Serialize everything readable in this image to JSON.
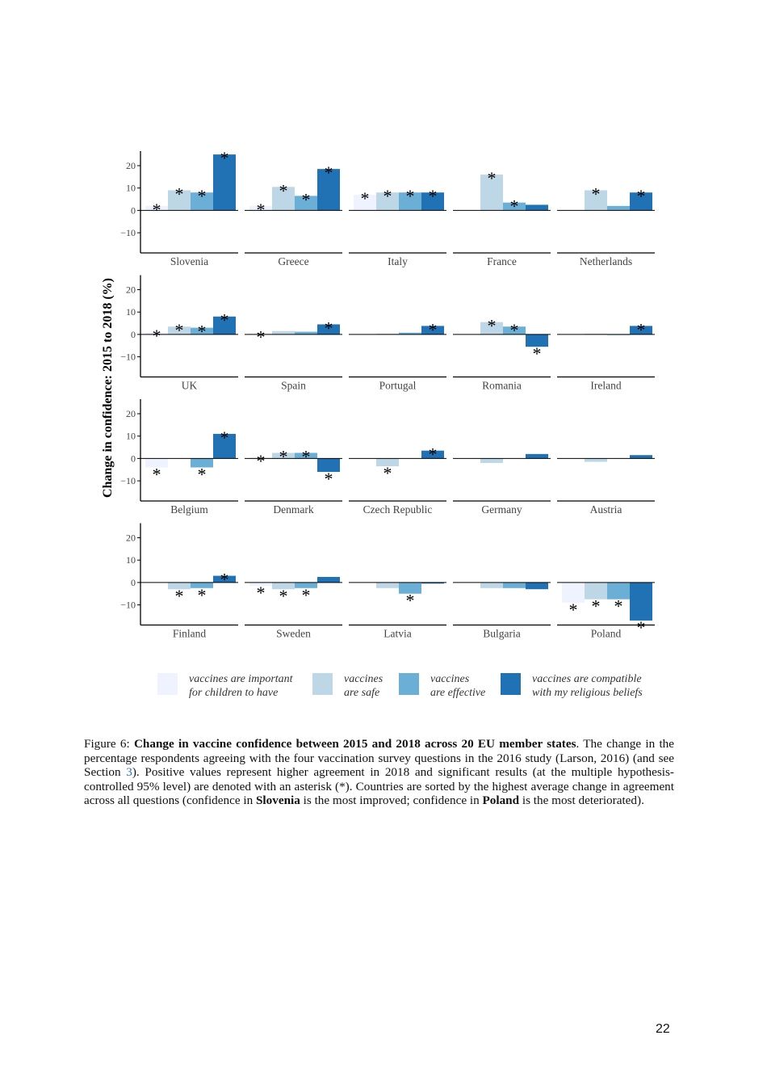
{
  "chart_data": {
    "type": "bar",
    "ylabel": "Change in confidence: 2015 to 2018 (%)",
    "ylim": [
      -19,
      26.5
    ],
    "yticks": [
      {
        "value": -10,
        "label": "−10"
      },
      0,
      10,
      20
    ],
    "marker": "*",
    "categories": [
      "Slovenia",
      "Greece",
      "Italy",
      "France",
      "Netherlands",
      "UK",
      "Spain",
      "Portugal",
      "Romania",
      "Ireland",
      "Belgium",
      "Denmark",
      "Czech Republic",
      "Germany",
      "Austria",
      "Finland",
      "Sweden",
      "Latvia",
      "Bulgaria",
      "Poland"
    ],
    "series": [
      {
        "name": [
          "vaccines are important",
          "for children to have"
        ],
        "color": "#eff3ff",
        "values": [
          2,
          2,
          7,
          0,
          0,
          1,
          0.5,
          0,
          0,
          0,
          -4,
          0.5,
          0,
          0,
          0,
          0,
          -1.5,
          0,
          0,
          -9
        ],
        "significant": [
          true,
          true,
          true,
          false,
          false,
          true,
          true,
          false,
          false,
          false,
          true,
          true,
          false,
          false,
          false,
          false,
          true,
          false,
          false,
          true
        ]
      },
      {
        "name": [
          "vaccines",
          "are safe"
        ],
        "color": "#bdd7e7",
        "values": [
          9,
          10.5,
          8,
          16,
          9,
          3.5,
          1.5,
          0.3,
          5.5,
          0.3,
          0,
          2.5,
          -3.5,
          -2,
          -1.5,
          -3,
          -3,
          -2.5,
          -2.5,
          -7.5
        ],
        "significant": [
          true,
          true,
          true,
          true,
          true,
          true,
          false,
          false,
          true,
          false,
          false,
          true,
          true,
          false,
          false,
          true,
          true,
          false,
          false,
          true
        ]
      },
      {
        "name": [
          "vaccines",
          "are effective"
        ],
        "color": "#6baed6",
        "values": [
          8,
          6.5,
          8,
          3.5,
          2,
          3,
          1.2,
          0.8,
          3.5,
          -0.3,
          -4,
          2.5,
          0,
          0,
          0,
          -2.5,
          -2.5,
          -5,
          -2.5,
          -7.5
        ],
        "significant": [
          true,
          true,
          true,
          true,
          false,
          true,
          false,
          false,
          true,
          false,
          true,
          true,
          false,
          false,
          false,
          true,
          true,
          true,
          false,
          true
        ]
      },
      {
        "name": [
          "vaccines are compatible",
          "with my religious beliefs"
        ],
        "color": "#2171b5",
        "values": [
          25,
          18.5,
          8,
          2.5,
          8,
          8,
          4.5,
          3.8,
          -5.5,
          3.8,
          11,
          -6,
          3.5,
          2,
          1.5,
          3,
          2.5,
          -0.5,
          -3,
          -17
        ],
        "significant": [
          true,
          true,
          true,
          false,
          true,
          true,
          true,
          true,
          true,
          true,
          true,
          true,
          true,
          false,
          false,
          true,
          false,
          false,
          false,
          true
        ]
      }
    ]
  },
  "caption": [
    {
      "text": "Figure 6: ",
      "style": "plain"
    },
    {
      "text": "Change in vaccine confidence between 2015 and 2018 across 20 EU member states",
      "style": "bold"
    },
    {
      "text": ". The change in the percentage respondents agreeing with the four vaccination survey questions in the 2016 study (Larson, 2016) (and see Section ",
      "style": "plain"
    },
    {
      "text": "3",
      "style": "link"
    },
    {
      "text": "). Positive values represent higher agreement in 2018 and significant results (at the multiple hypothesis-controlled 95% level) are denoted with an asterisk (*). Countries are sorted by the highest average change in agreement across all questions (confidence in ",
      "style": "plain"
    },
    {
      "text": "Slovenia",
      "style": "bold"
    },
    {
      "text": " is the most improved; confidence in ",
      "style": "plain"
    },
    {
      "text": "Poland",
      "style": "bold"
    },
    {
      "text": " is the most deteriorated).",
      "style": "plain"
    }
  ],
  "page_number": "22"
}
